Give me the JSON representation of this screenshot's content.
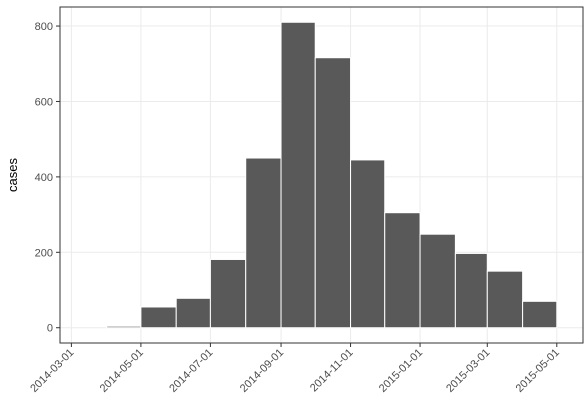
{
  "chart_data": {
    "type": "histogram",
    "y_label": "cases",
    "bins": [
      "2014-04-01",
      "2014-05-01",
      "2014-06-01",
      "2014-07-01",
      "2014-08-01",
      "2014-09-01",
      "2014-10-01",
      "2014-11-01",
      "2014-12-01",
      "2015-01-01",
      "2015-02-01",
      "2015-03-01",
      "2015-04-01",
      "2015-05-01"
    ],
    "values": [
      4,
      55,
      78,
      181,
      450,
      810,
      716,
      445,
      305,
      248,
      197,
      150,
      70
    ],
    "color": "#595959",
    "xlim": [
      "2014-02-19",
      "2015-05-24"
    ],
    "xticks": [
      "2014-03-01",
      "2014-05-01",
      "2014-07-01",
      "2014-09-01",
      "2014-11-01",
      "2015-01-01",
      "2015-03-01",
      "2015-05-01"
    ],
    "ylim": [
      -40.5,
      850.5
    ],
    "yticks": [
      0,
      200,
      400,
      600,
      800
    ],
    "grid": true
  }
}
